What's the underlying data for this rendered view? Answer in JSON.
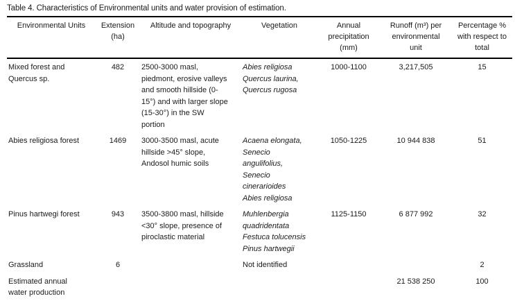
{
  "title": "Table 4. Characteristics of Environmental units and water provision of estimation.",
  "table": {
    "headers": [
      "Environmental Units",
      "Extension\n(ha)",
      "Altitude and topography",
      "Vegetation",
      "Annual\nprecipitation\n(mm)",
      "Runoff (m³) per\nenvironmental\nunit",
      "Percentage %\nwith respect to\ntotal"
    ],
    "rows": [
      {
        "unit": "Mixed forest and\nQuercus sp.",
        "extension": "482",
        "altitude": "2500-3000 masl,\npiedmont, erosive valleys\nand smooth hillside (0-\n15°) and with larger slope\n(15-30°) in the SW\nportion",
        "vegetation": "Abies religiosa\nQuercus laurina,\nQuercus rugosa",
        "precipitation": "1000-1100",
        "runoff": "3,217,505",
        "percentage": "15"
      },
      {
        "unit": "Abies religiosa forest",
        "extension": "1469",
        "altitude": "3000-3500 masl, acute\nhillside >45° slope,\nAndosol humic soils",
        "vegetation": "Acaena elongata,\nSenecio\nangulifolius,\nSenecio\ncinerarioides\nAbies religiosa",
        "precipitation": "1050-1225",
        "runoff": "10 944 838",
        "percentage": "51"
      },
      {
        "unit": "Pinus hartwegi forest",
        "extension": "943",
        "altitude": "3500-3800 masl, hillside\n<30° slope, presence of\npiroclastic material",
        "vegetation": "Muhlenbergia\nquadridentata\nFestuca tolucensis\nPinus hartwegii",
        "precipitation": "1125-1150",
        "runoff": "6 877 992",
        "percentage": "32"
      },
      {
        "unit": "Grassland",
        "extension": "6",
        "altitude": "",
        "vegetation": "Not identified",
        "precipitation": "",
        "runoff": "",
        "percentage": "2"
      },
      {
        "unit": "Estimated annual\nwater production",
        "extension": "",
        "altitude": "",
        "vegetation": "",
        "precipitation": "",
        "runoff": "21 538 250",
        "percentage": "100"
      }
    ]
  }
}
